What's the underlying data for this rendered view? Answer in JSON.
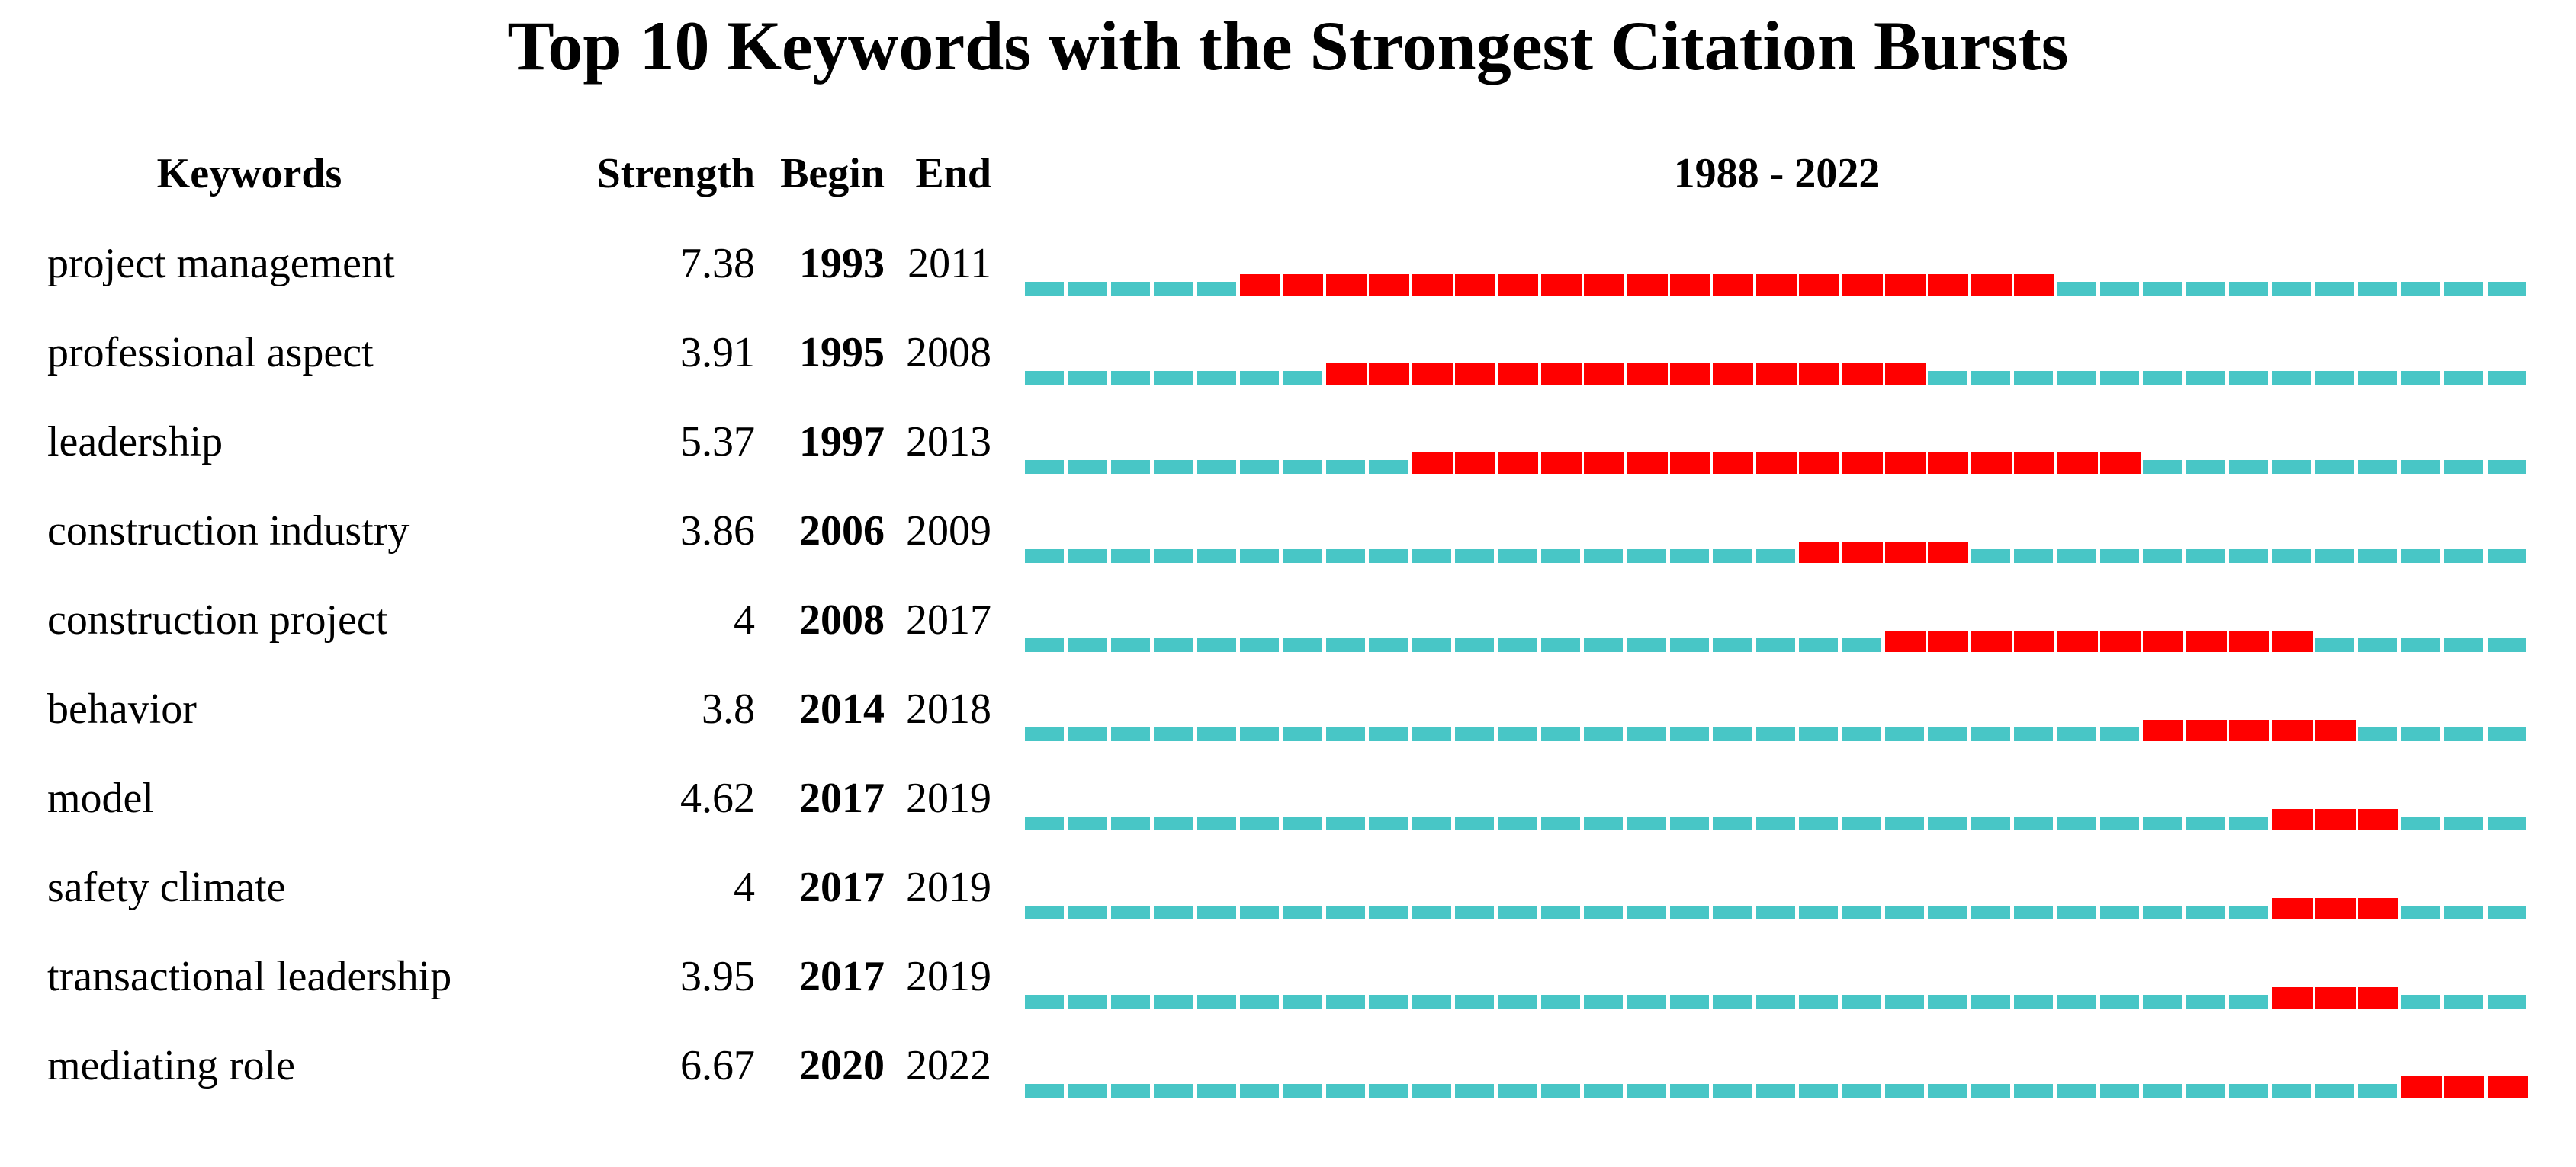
{
  "title": "Top 10 Keywords with the Strongest Citation Bursts",
  "chart_data": {
    "type": "burst-timeline",
    "description": "CiteSpace-style citation burst table: each row shows a keyword, burst strength, burst begin/end years, and a dashed year timeline where red segments mark the burst interval",
    "column_headers": {
      "keywords": "Keywords",
      "strength": "Strength",
      "begin": "Begin",
      "end": "End"
    },
    "timeline_label": "1988 - 2022",
    "year_start": 1988,
    "year_end": 2022,
    "legend": {
      "timeline_color_meaning": "year within 1988-2022 range (no burst)",
      "burst_color_meaning": "year within citation burst interval"
    },
    "colors": {
      "timeline": "#48C6C6",
      "burst": "#FF0000",
      "text": "#000000",
      "background": "#FFFFFF"
    },
    "rows": [
      {
        "keyword": "project management",
        "strength": "7.38",
        "begin": 1993,
        "end": 2011
      },
      {
        "keyword": "professional aspect",
        "strength": "3.91",
        "begin": 1995,
        "end": 2008
      },
      {
        "keyword": "leadership",
        "strength": "5.37",
        "begin": 1997,
        "end": 2013
      },
      {
        "keyword": "construction industry",
        "strength": "3.86",
        "begin": 2006,
        "end": 2009
      },
      {
        "keyword": "construction project",
        "strength": "4",
        "begin": 2008,
        "end": 2017
      },
      {
        "keyword": "behavior",
        "strength": "3.8",
        "begin": 2014,
        "end": 2018
      },
      {
        "keyword": "model",
        "strength": "4.62",
        "begin": 2017,
        "end": 2019
      },
      {
        "keyword": "safety climate",
        "strength": "4",
        "begin": 2017,
        "end": 2019
      },
      {
        "keyword": "transactional leadership",
        "strength": "3.95",
        "begin": 2017,
        "end": 2019
      },
      {
        "keyword": "mediating role",
        "strength": "6.67",
        "begin": 2020,
        "end": 2022
      }
    ]
  }
}
